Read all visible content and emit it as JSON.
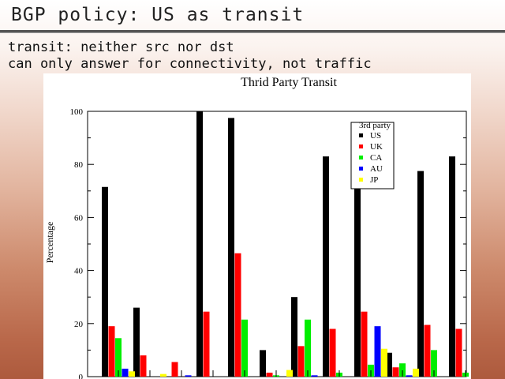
{
  "slide": {
    "title": "BGP policy: US as transit",
    "bullets": [
      "transit: neither src nor dst",
      "can only answer for connectivity, not traffic"
    ]
  },
  "chart_data": {
    "type": "bar",
    "title": "Thrid Party Transit",
    "xlabel": "",
    "ylabel": "Percentage",
    "ylim": [
      0,
      100
    ],
    "yticks": [
      0,
      20,
      40,
      60,
      80,
      100
    ],
    "grid": false,
    "legend": {
      "title": "3rd party",
      "position": "top-right"
    },
    "categories": [
      "",
      "",
      "",
      "",
      "",
      "",
      "",
      "",
      "",
      "",
      "",
      ""
    ],
    "series": [
      {
        "name": "US",
        "color": "#000000",
        "values": [
          71.5,
          26,
          0,
          100,
          97.5,
          10,
          30,
          83,
          90,
          9,
          77.5,
          83
        ]
      },
      {
        "name": "UK",
        "color": "#ff0000",
        "values": [
          19,
          8,
          5.5,
          24.5,
          46.5,
          1.5,
          11.5,
          18,
          24.5,
          3.5,
          19.5,
          18
        ]
      },
      {
        "name": "CA",
        "color": "#00ee00",
        "values": [
          14.5,
          0,
          0,
          0,
          21.5,
          0.5,
          21.5,
          1.5,
          4.5,
          5,
          10,
          1.5
        ]
      },
      {
        "name": "AU",
        "color": "#0000ff",
        "values": [
          3,
          0,
          0.5,
          0,
          0,
          0,
          0.5,
          0,
          19,
          0.5,
          0,
          0
        ]
      },
      {
        "name": "JP",
        "color": "#ffff00",
        "values": [
          2,
          1,
          0,
          0,
          0,
          2.5,
          0,
          0,
          10.5,
          3,
          0,
          0
        ]
      }
    ]
  }
}
